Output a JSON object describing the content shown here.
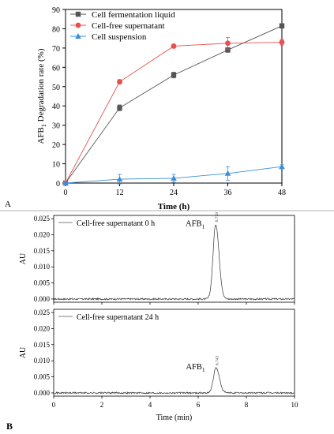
{
  "panel_labels": {
    "a": "A",
    "b": "B"
  },
  "chart_data": [
    {
      "type": "line",
      "xlabel": "Time (h)",
      "ylabel": "AFB1 Degradation rate (%)",
      "ylabel_parts": {
        "pre": "AFB",
        "sub": "1",
        "post": " Degradation rate (%)"
      },
      "x": [
        0,
        12,
        24,
        36,
        48
      ],
      "xlim": [
        0,
        48
      ],
      "ylim": [
        0,
        90
      ],
      "x_ticks": [
        0,
        12,
        24,
        36,
        48
      ],
      "y_ticks": [
        0,
        10,
        20,
        30,
        40,
        50,
        60,
        70,
        80,
        90
      ],
      "legend_position": "top-left",
      "series": [
        {
          "name": "Cell fermentation liquid",
          "marker": "square",
          "color": "#555555",
          "values": [
            0,
            39,
            56,
            69,
            81.5
          ],
          "errors": [
            0,
            1.5,
            1.5,
            1.2,
            1.2
          ]
        },
        {
          "name": "Cell-free supernatant",
          "marker": "circle",
          "color": "#e8504f",
          "values": [
            0,
            52.5,
            71,
            72.5,
            73
          ],
          "errors": [
            0,
            1.2,
            1.0,
            3.0,
            1.5
          ]
        },
        {
          "name": "Cell suspension",
          "marker": "triangle",
          "color": "#3a8fd9",
          "values": [
            0,
            2,
            2.5,
            5,
            8.5
          ],
          "errors": [
            0,
            2.5,
            2.0,
            3.5,
            1.0
          ]
        }
      ]
    },
    {
      "type": "line",
      "ylabel": "AU",
      "legend": "Cell-free supernatant 0 h",
      "y_ticks": [
        0.0,
        0.005,
        0.01,
        0.015,
        0.02,
        0.025
      ],
      "y_tick_labels": [
        "0.000",
        "0.005",
        "0.010",
        "0.015",
        "0.020",
        "0.025"
      ],
      "ylim": [
        -0.001,
        0.026
      ],
      "xlim": [
        0,
        10
      ],
      "peak": {
        "retention_time": 6.728,
        "height": 0.0232,
        "width": 0.11,
        "label": "6.728",
        "compound_pre": "AFB",
        "compound_sub": "1"
      }
    },
    {
      "type": "line",
      "ylabel": "AU",
      "xlabel": "Time (min)",
      "legend": "Cell-free supernatant 24 h",
      "y_ticks": [
        0.0,
        0.005,
        0.01,
        0.015,
        0.02,
        0.025
      ],
      "y_tick_labels": [
        "0.000",
        "0.005",
        "0.010",
        "0.015",
        "0.020",
        "0.025"
      ],
      "x_ticks": [
        0,
        2,
        4,
        6,
        8,
        10
      ],
      "ylim": [
        -0.001,
        0.026
      ],
      "xlim": [
        0,
        10
      ],
      "peak": {
        "retention_time": 6.743,
        "height": 0.0078,
        "width": 0.11,
        "label": "6.743",
        "compound_pre": "AFB",
        "compound_sub": "1"
      }
    }
  ]
}
